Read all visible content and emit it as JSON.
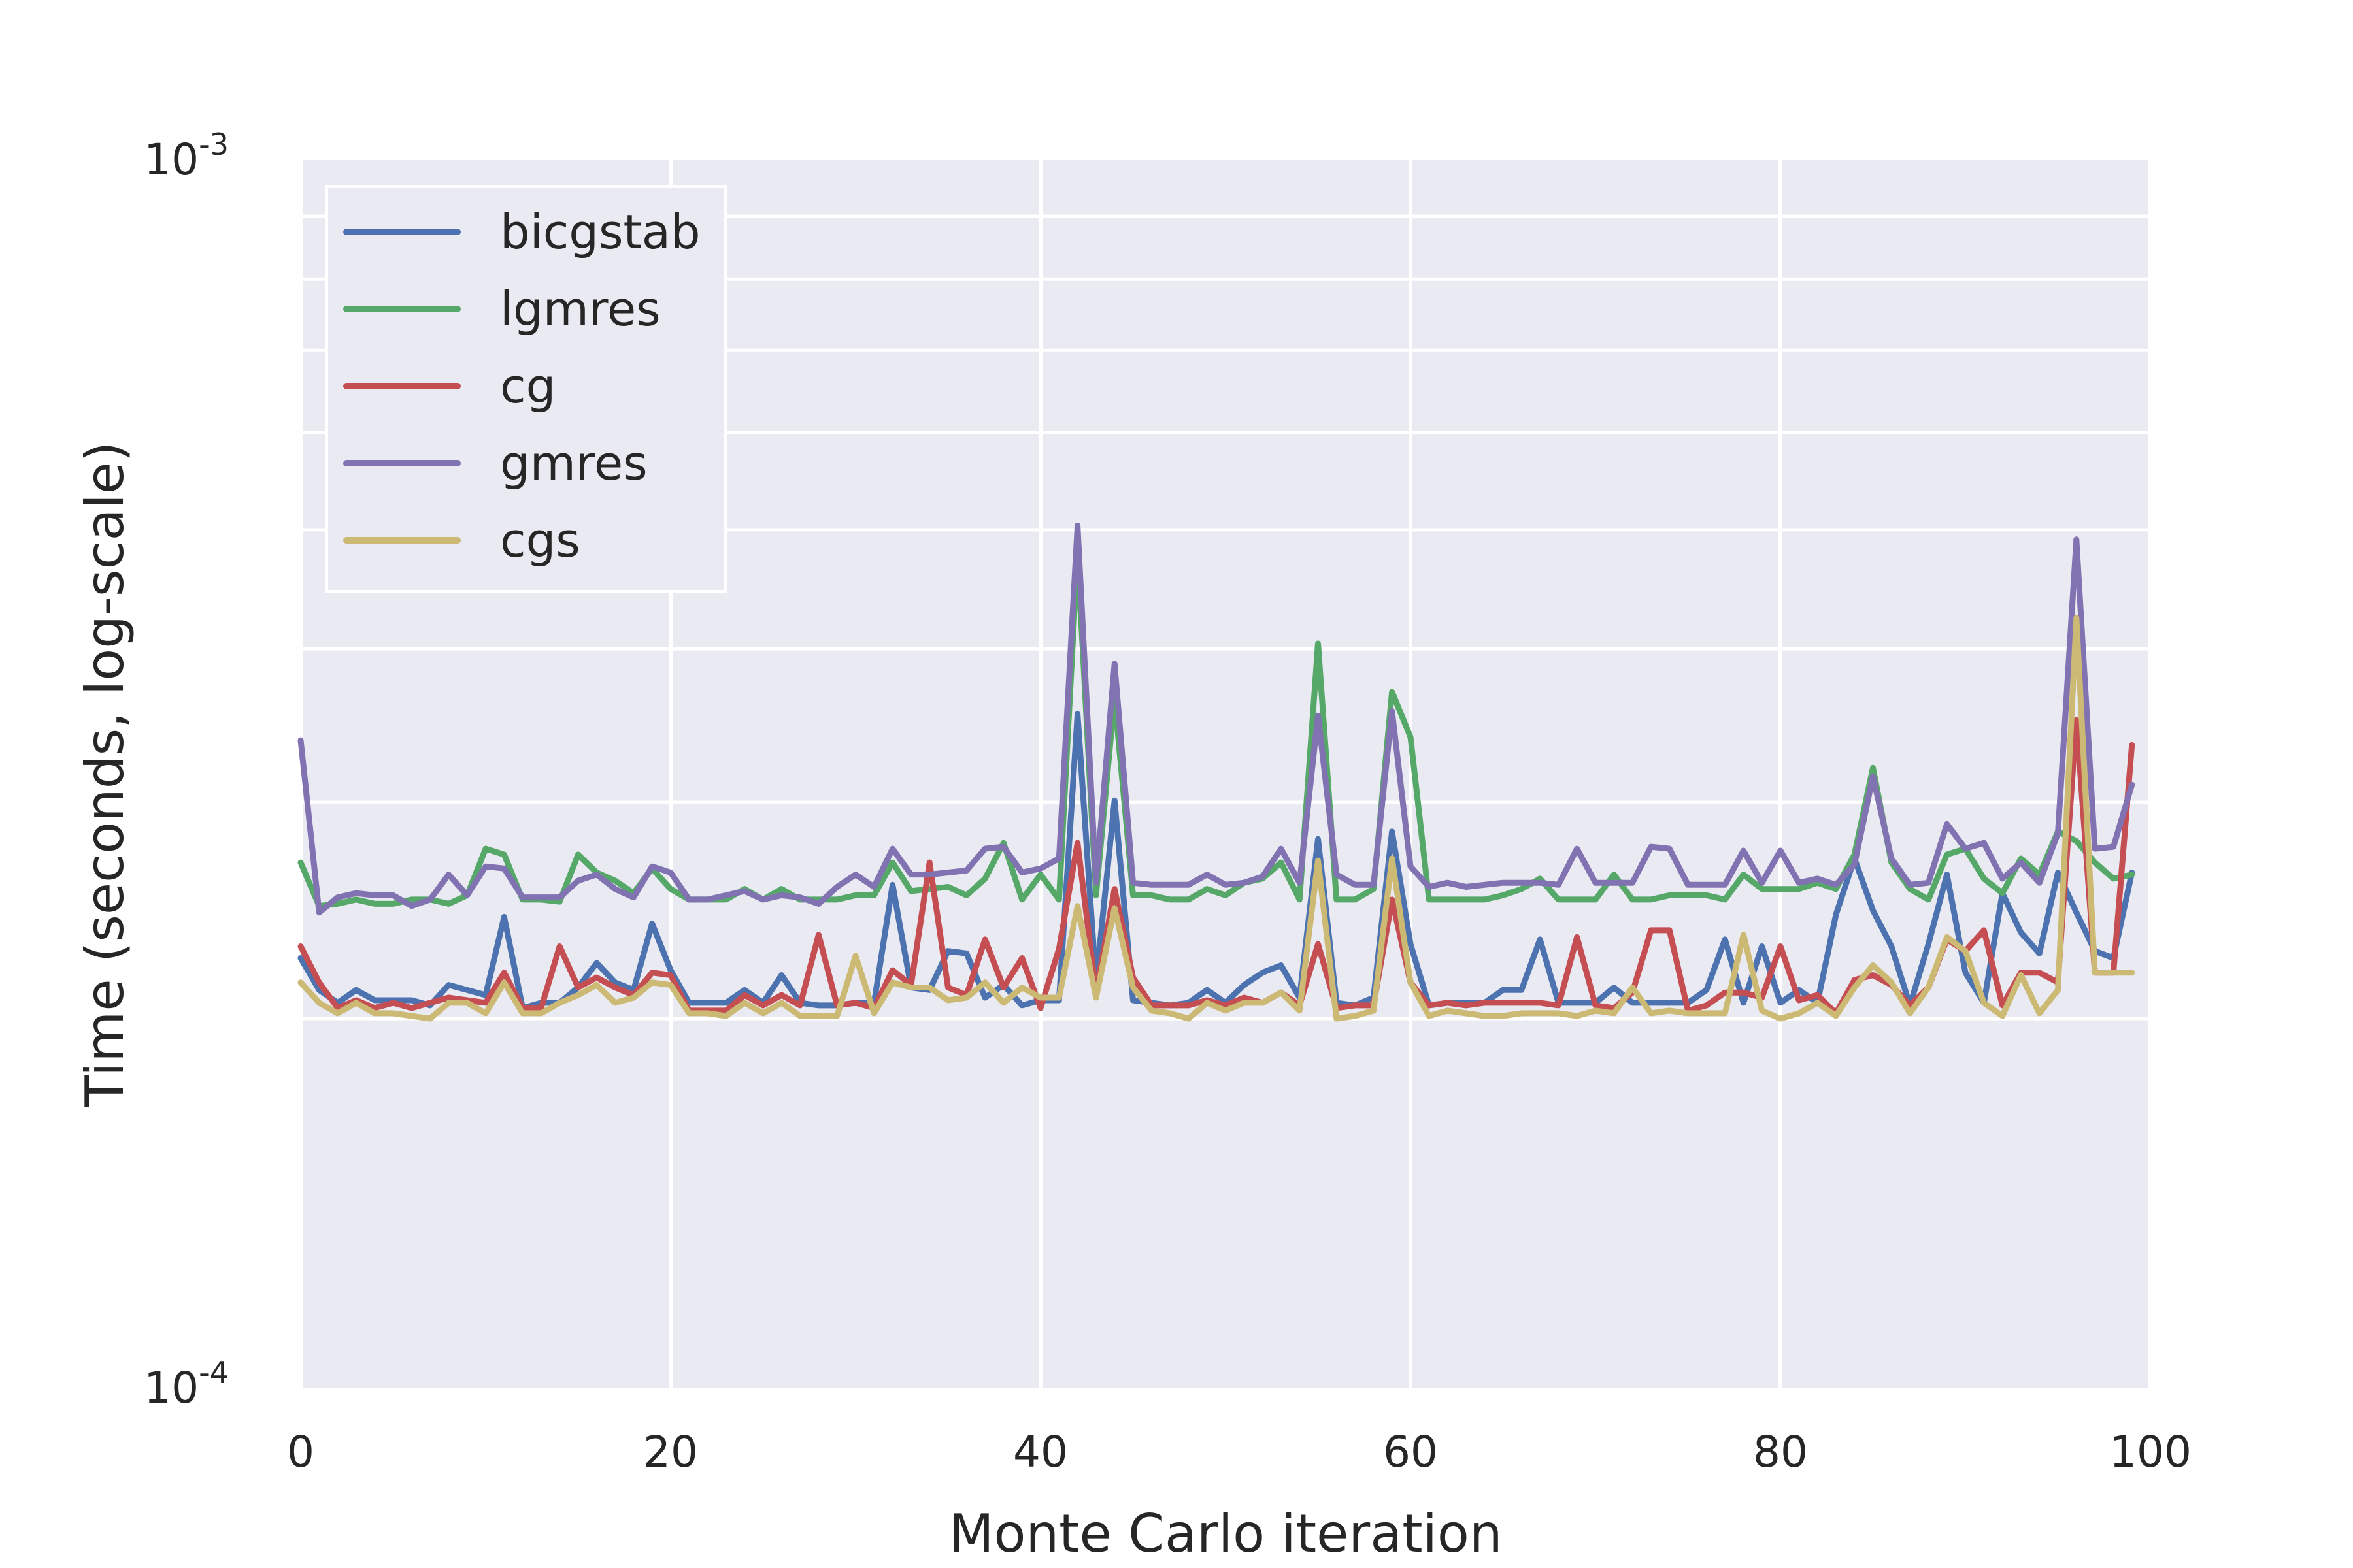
{
  "chart_data": {
    "type": "line",
    "title": "",
    "xlabel": "Monte Carlo iteration",
    "ylabel": "Time (seconds, log-scale)",
    "xlim": [
      0,
      100
    ],
    "ylim": [
      0.0001,
      0.001
    ],
    "yscale": "log",
    "grid": true,
    "legend_position": "top-left",
    "x_ticks": [
      {
        "value": 0,
        "label": "0"
      },
      {
        "value": 20,
        "label": "20"
      },
      {
        "value": 40,
        "label": "40"
      },
      {
        "value": 60,
        "label": "60"
      },
      {
        "value": 80,
        "label": "80"
      },
      {
        "value": 100,
        "label": "100"
      }
    ],
    "y_ticks": [
      {
        "value": 0.0001,
        "base": "10",
        "exp": "-4"
      },
      {
        "value": 0.001,
        "base": "10",
        "exp": "-3"
      }
    ],
    "x": [
      0,
      1,
      2,
      3,
      4,
      5,
      6,
      7,
      8,
      9,
      10,
      11,
      12,
      13,
      14,
      15,
      16,
      17,
      18,
      19,
      20,
      21,
      22,
      23,
      24,
      25,
      26,
      27,
      28,
      29,
      30,
      31,
      32,
      33,
      34,
      35,
      36,
      37,
      38,
      39,
      40,
      41,
      42,
      43,
      44,
      45,
      46,
      47,
      48,
      49,
      50,
      51,
      52,
      53,
      54,
      55,
      56,
      57,
      58,
      59,
      60,
      61,
      62,
      63,
      64,
      65,
      66,
      67,
      68,
      69,
      70,
      71,
      72,
      73,
      74,
      75,
      76,
      77,
      78,
      79,
      80,
      81,
      82,
      83,
      84,
      85,
      86,
      87,
      88,
      89,
      90,
      91,
      92,
      93,
      94,
      95,
      96,
      97,
      98,
      99
    ],
    "series": [
      {
        "name": "bicgstab",
        "color": "#4c72b0",
        "values": [
          0.000224,
          0.000211,
          0.000206,
          0.000211,
          0.000207,
          0.000207,
          0.000207,
          0.000205,
          0.000213,
          0.000211,
          0.000209,
          0.000242,
          0.000204,
          0.000206,
          0.000206,
          0.000212,
          0.000222,
          0.000214,
          0.000211,
          0.000239,
          0.000219,
          0.000206,
          0.000206,
          0.000206,
          0.000211,
          0.000206,
          0.000217,
          0.000206,
          0.000205,
          0.000205,
          0.000206,
          0.000206,
          0.000257,
          0.000212,
          0.000211,
          0.000227,
          0.000226,
          0.000208,
          0.000213,
          0.000205,
          0.000207,
          0.000207,
          0.000354,
          0.000214,
          0.000301,
          0.000207,
          0.000206,
          0.000205,
          0.000206,
          0.000211,
          0.000206,
          0.000213,
          0.000218,
          0.000221,
          0.000208,
          0.00028,
          0.000206,
          0.000205,
          0.000208,
          0.000284,
          0.00023,
          0.000205,
          0.000206,
          0.000206,
          0.000206,
          0.000211,
          0.000211,
          0.000232,
          0.000206,
          0.000206,
          0.000206,
          0.000212,
          0.000206,
          0.000206,
          0.000206,
          0.000206,
          0.000211,
          0.000232,
          0.000206,
          0.000229,
          0.000206,
          0.000211,
          0.000206,
          0.000243,
          0.00027,
          0.000245,
          0.000229,
          0.000205,
          0.00023,
          0.000262,
          0.000218,
          0.000206,
          0.000253,
          0.000235,
          0.000226,
          0.000263,
          0.000244,
          0.000227,
          0.000224,
          0.000263
        ]
      },
      {
        "name": "lgmres",
        "color": "#55a868",
        "values": [
          0.000268,
          0.000247,
          0.000248,
          0.00025,
          0.000248,
          0.000248,
          0.00025,
          0.00025,
          0.000248,
          0.000252,
          0.000275,
          0.000272,
          0.00025,
          0.00025,
          0.000249,
          0.000272,
          0.000263,
          0.000259,
          0.000253,
          0.000265,
          0.000255,
          0.00025,
          0.00025,
          0.00025,
          0.000255,
          0.00025,
          0.000255,
          0.00025,
          0.00025,
          0.00025,
          0.000252,
          0.000252,
          0.000268,
          0.000254,
          0.000255,
          0.000256,
          0.000252,
          0.00026,
          0.000278,
          0.00025,
          0.000262,
          0.00025,
          0.000478,
          0.000252,
          0.000365,
          0.000252,
          0.000252,
          0.00025,
          0.00025,
          0.000255,
          0.000252,
          0.000258,
          0.00026,
          0.000268,
          0.00025,
          0.000404,
          0.00025,
          0.00025,
          0.000255,
          0.000369,
          0.000339,
          0.00025,
          0.00025,
          0.00025,
          0.00025,
          0.000252,
          0.000255,
          0.00026,
          0.00025,
          0.00025,
          0.00025,
          0.000262,
          0.00025,
          0.00025,
          0.000252,
          0.000252,
          0.000252,
          0.00025,
          0.000262,
          0.000255,
          0.000255,
          0.000255,
          0.000258,
          0.000255,
          0.000272,
          0.00032,
          0.000268,
          0.000255,
          0.00025,
          0.000272,
          0.000275,
          0.00026,
          0.000253,
          0.00027,
          0.000262,
          0.000284,
          0.000279,
          0.000268,
          0.00026,
          0.000262
        ]
      },
      {
        "name": "cg",
        "color": "#c44e52",
        "values": [
          0.000229,
          0.000214,
          0.000204,
          0.000207,
          0.000204,
          0.000206,
          0.000204,
          0.000206,
          0.000208,
          0.000207,
          0.000206,
          0.000218,
          0.000204,
          0.000204,
          0.000229,
          0.000212,
          0.000216,
          0.000212,
          0.000209,
          0.000218,
          0.000217,
          0.000203,
          0.000203,
          0.000203,
          0.000209,
          0.000205,
          0.000209,
          0.000205,
          0.000234,
          0.000205,
          0.000206,
          0.000204,
          0.000219,
          0.000213,
          0.000268,
          0.000212,
          0.000209,
          0.000232,
          0.000212,
          0.000224,
          0.000204,
          0.000228,
          0.000278,
          0.00021,
          0.000255,
          0.000216,
          0.000205,
          0.000205,
          0.000205,
          0.000207,
          0.000205,
          0.000208,
          0.000206,
          0.00021,
          0.000205,
          0.00023,
          0.000204,
          0.000205,
          0.000205,
          0.00025,
          0.000214,
          0.000205,
          0.000206,
          0.000205,
          0.000206,
          0.000206,
          0.000206,
          0.000206,
          0.000205,
          0.000233,
          0.000205,
          0.000204,
          0.00021,
          0.000236,
          0.000236,
          0.000203,
          0.000205,
          0.00021,
          0.00021,
          0.000208,
          0.000229,
          0.000207,
          0.000209,
          0.000202,
          0.000215,
          0.000217,
          0.000213,
          0.000205,
          0.000212,
          0.000232,
          0.000227,
          0.000236,
          0.000205,
          0.000218,
          0.000218,
          0.000214,
          0.00035,
          0.000218,
          0.000218,
          0.000334
        ]
      },
      {
        "name": "gmres",
        "color": "#8172b2",
        "values": [
          0.000337,
          0.000244,
          0.000251,
          0.000253,
          0.000252,
          0.000252,
          0.000247,
          0.00025,
          0.000262,
          0.000252,
          0.000266,
          0.000265,
          0.000251,
          0.000251,
          0.000251,
          0.000259,
          0.000262,
          0.000255,
          0.000251,
          0.000266,
          0.000263,
          0.00025,
          0.00025,
          0.000252,
          0.000254,
          0.00025,
          0.000252,
          0.000251,
          0.000248,
          0.000256,
          0.000262,
          0.000256,
          0.000275,
          0.000262,
          0.000262,
          0.000263,
          0.000264,
          0.000275,
          0.000276,
          0.000263,
          0.000265,
          0.00027,
          0.000504,
          0.000258,
          0.000389,
          0.000258,
          0.000257,
          0.000257,
          0.000257,
          0.000262,
          0.000257,
          0.000258,
          0.000261,
          0.000275,
          0.000258,
          0.000353,
          0.000262,
          0.000257,
          0.000257,
          0.000356,
          0.000266,
          0.000256,
          0.000258,
          0.000256,
          0.000257,
          0.000258,
          0.000258,
          0.000258,
          0.000257,
          0.000275,
          0.000258,
          0.000258,
          0.000258,
          0.000276,
          0.000275,
          0.000257,
          0.000257,
          0.000257,
          0.000274,
          0.000258,
          0.000274,
          0.000258,
          0.00026,
          0.000257,
          0.000267,
          0.000315,
          0.00027,
          0.000257,
          0.000258,
          0.000288,
          0.000275,
          0.000278,
          0.00026,
          0.000268,
          0.000258,
          0.000283,
          0.000491,
          0.000275,
          0.000276,
          0.00031
        ]
      },
      {
        "name": "cgs",
        "color": "#ccb974",
        "values": [
          0.000214,
          0.000206,
          0.000202,
          0.000206,
          0.000202,
          0.000202,
          0.000201,
          0.0002,
          0.000206,
          0.000206,
          0.000202,
          0.000214,
          0.000202,
          0.000202,
          0.000206,
          0.000209,
          0.000213,
          0.000206,
          0.000208,
          0.000214,
          0.000213,
          0.000202,
          0.000202,
          0.000201,
          0.000206,
          0.000202,
          0.000206,
          0.000201,
          0.000201,
          0.000201,
          0.000225,
          0.000202,
          0.000214,
          0.000212,
          0.000212,
          0.000207,
          0.000208,
          0.000214,
          0.000206,
          0.000212,
          0.000208,
          0.000208,
          0.000247,
          0.000208,
          0.000246,
          0.000212,
          0.000203,
          0.000202,
          0.0002,
          0.000206,
          0.000203,
          0.000206,
          0.000206,
          0.00021,
          0.000203,
          0.000269,
          0.0002,
          0.000201,
          0.000203,
          0.00027,
          0.000214,
          0.000201,
          0.000203,
          0.000202,
          0.000201,
          0.000201,
          0.000202,
          0.000202,
          0.000202,
          0.000201,
          0.000203,
          0.000202,
          0.000212,
          0.000202,
          0.000203,
          0.000202,
          0.000202,
          0.000202,
          0.000234,
          0.000203,
          0.0002,
          0.000202,
          0.000206,
          0.000201,
          0.000212,
          0.000221,
          0.000214,
          0.000202,
          0.000212,
          0.000233,
          0.000227,
          0.000206,
          0.000201,
          0.000217,
          0.000202,
          0.000211,
          0.000424,
          0.000218,
          0.000218,
          0.000218
        ]
      }
    ]
  }
}
